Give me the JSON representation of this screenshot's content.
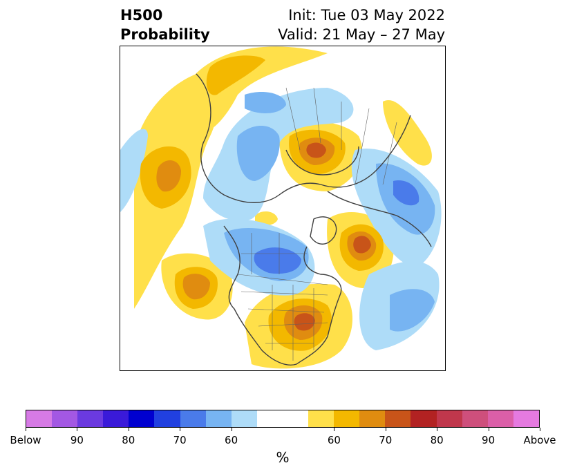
{
  "title": {
    "left_line1": "H500",
    "left_line2": "Probability",
    "right_line1": "Init: Tue 03 May 2022",
    "right_line2": "Valid: 21 May – 27 May"
  },
  "colorbar": {
    "unit": "%",
    "colors": [
      "#d67ae5",
      "#a358e3",
      "#6b3ae0",
      "#3a1ad9",
      "#0000d0",
      "#2140e0",
      "#4a7bea",
      "#77b4f2",
      "#aedcf8",
      "#ffffff",
      "#ffe04a",
      "#f3b800",
      "#e08c10",
      "#c85419",
      "#b22222",
      "#c0374c",
      "#ce4f7c",
      "#db5fa8",
      "#e57ae0"
    ],
    "labels": [
      "Below",
      "90",
      "80",
      "70",
      "60",
      "60",
      "70",
      "80",
      "90",
      "Above"
    ]
  }
}
